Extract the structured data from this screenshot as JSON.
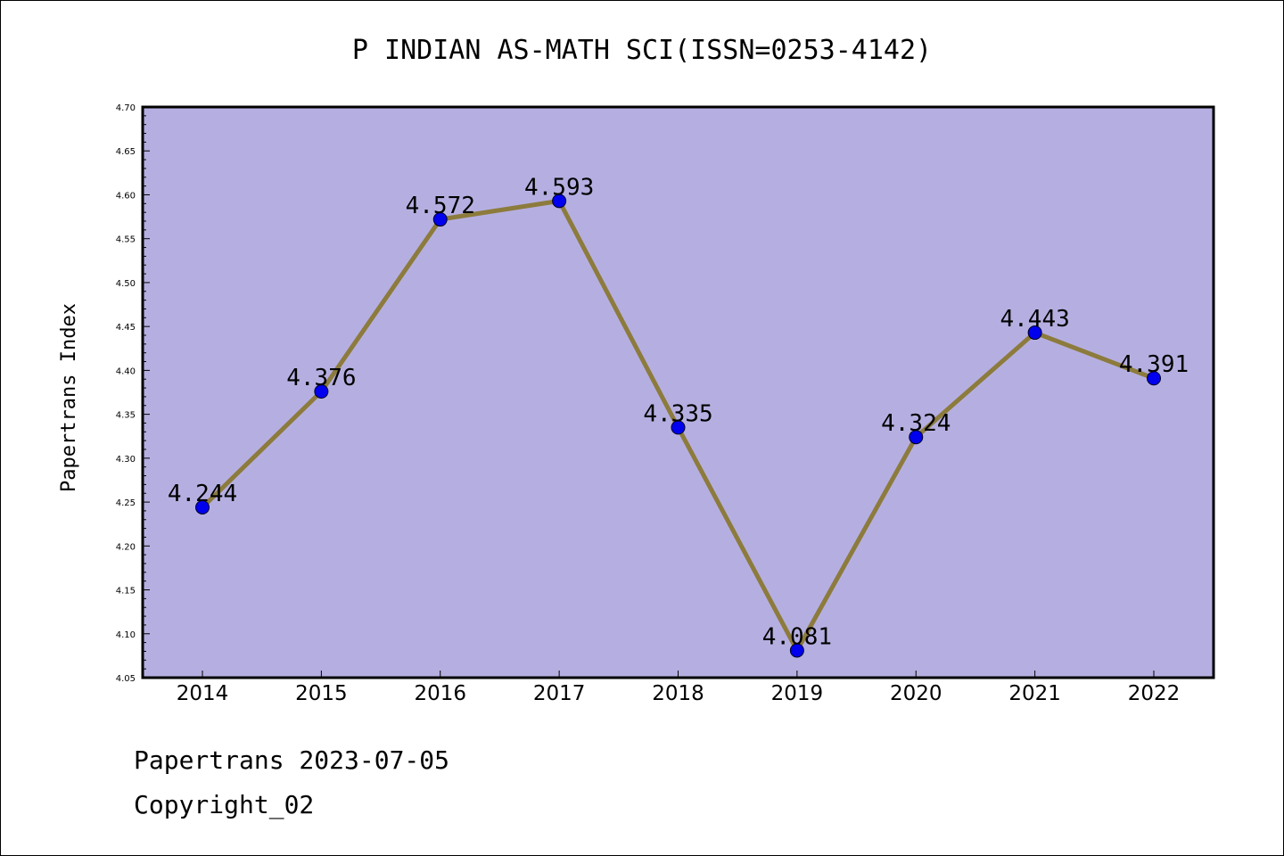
{
  "chart_data": {
    "type": "line",
    "title": "P INDIAN AS-MATH SCI(ISSN=0253-4142)",
    "xlabel": "",
    "ylabel": "Papertrans Index",
    "categories": [
      "2014",
      "2015",
      "2016",
      "2017",
      "2018",
      "2019",
      "2020",
      "2021",
      "2022"
    ],
    "values": [
      4.244,
      4.376,
      4.572,
      4.593,
      4.335,
      4.081,
      4.324,
      4.443,
      4.391
    ],
    "data_labels": [
      "4.244",
      "4.376",
      "4.572",
      "4.593",
      "4.335",
      "4.081",
      "4.324",
      "4.443",
      "4.391"
    ],
    "ylim": [
      4.05,
      4.7
    ],
    "yticks": [
      "4.05",
      "4.10",
      "4.15",
      "4.20",
      "4.25",
      "4.30",
      "4.35",
      "4.40",
      "4.45",
      "4.50",
      "4.55",
      "4.60",
      "4.65",
      "4.70"
    ],
    "grid": false,
    "legend": "none",
    "colors": {
      "plot_background": "#b5afe1",
      "line": "#8c7b3c",
      "marker": "#0000ee"
    }
  },
  "footer": {
    "line1": "Papertrans 2023-07-05",
    "line2": "Copyright_02"
  }
}
